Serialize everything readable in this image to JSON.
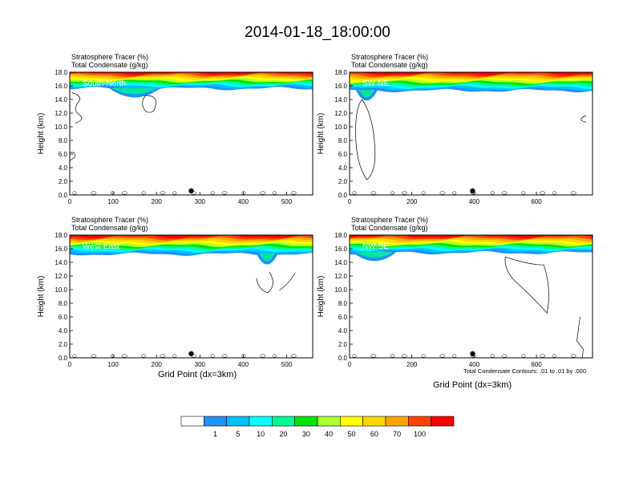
{
  "figure": {
    "title": "2014-01-18_18:00:00",
    "xlabel": "Grid Point (dx=3km)",
    "ylabel": "Height (km)",
    "label_line1": "Stratosphere Tracer   (%)",
    "label_line2": "Total Condensate   (g/kg)",
    "contour_note": "Total Condensate Contours: .01 to .01 by .000"
  },
  "chart_data": [
    {
      "type": "heatmap",
      "panel_label": "South-North",
      "xlim": [
        0,
        560
      ],
      "ylim": [
        0,
        18
      ],
      "xticks": [
        0,
        100,
        200,
        300,
        400,
        500
      ],
      "yticks": [
        "0.0",
        "2.0",
        "4.0",
        "6.0",
        "8.0",
        "10.0",
        "12.0",
        "14.0",
        "16.0",
        "18.0"
      ],
      "marker_x": 280,
      "tracer_base_km": 15.6,
      "blue_patch": {
        "x": [
          90,
          210
        ],
        "base_km": 13.6
      }
    },
    {
      "type": "heatmap",
      "panel_label": "SW-NE",
      "xlim": [
        0,
        780
      ],
      "ylim": [
        0,
        18
      ],
      "xticks": [
        0,
        200,
        400,
        600
      ],
      "yticks": [
        "0.0",
        "2.0",
        "4.0",
        "6.0",
        "8.0",
        "10.0",
        "12.0",
        "14.0",
        "16.0",
        "18.0"
      ],
      "marker_x": 395,
      "tracer_base_km": 15.3,
      "blue_patch": {
        "x": [
          20,
          90
        ],
        "base_km": 13.0
      }
    },
    {
      "type": "heatmap",
      "panel_label": "West-East",
      "xlim": [
        0,
        560
      ],
      "ylim": [
        0,
        18
      ],
      "xticks": [
        0,
        100,
        200,
        300,
        400,
        500
      ],
      "yticks": [
        "0.0",
        "2.0",
        "4.0",
        "6.0",
        "8.0",
        "10.0",
        "12.0",
        "14.0",
        "16.0",
        "18.0"
      ],
      "marker_x": 280,
      "tracer_base_km": 15.2,
      "blue_patch": {
        "x": [
          430,
          480
        ],
        "base_km": 12.8
      }
    },
    {
      "type": "heatmap",
      "panel_label": "NW-SE",
      "xlim": [
        0,
        780
      ],
      "ylim": [
        0,
        18
      ],
      "xticks": [
        0,
        200,
        400,
        600
      ],
      "yticks": [
        "0.0",
        "2.0",
        "4.0",
        "6.0",
        "8.0",
        "10.0",
        "12.0",
        "14.0",
        "16.0",
        "18.0"
      ],
      "marker_x": 395,
      "tracer_base_km": 15.4,
      "blue_patch": {
        "x": [
          10,
          150
        ],
        "base_km": 13.6
      }
    }
  ],
  "colorbar": {
    "colors": [
      "#ffffff",
      "#1e90ff",
      "#00bfff",
      "#00ffff",
      "#00fa9a",
      "#00e600",
      "#adff2f",
      "#ffff00",
      "#ffd700",
      "#ffa500",
      "#ff4500",
      "#ff0000"
    ],
    "labels": [
      "1",
      "5",
      "10",
      "20",
      "30",
      "40",
      "50",
      "60",
      "70",
      "100"
    ]
  }
}
